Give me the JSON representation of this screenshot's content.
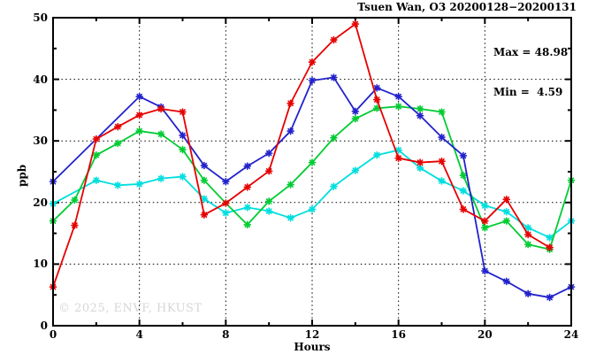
{
  "header": {
    "title": "Tsuen Wan, O3 20200128−20200131"
  },
  "annotation": {
    "max_label": "Max = 48.98",
    "min_label": "Min =  4.59"
  },
  "watermark": "© 2025, ENVF, HKUST",
  "chart_data": {
    "type": "line",
    "title": "Tsuen Wan, O3 20200128−20200131",
    "xlabel": "Hours",
    "ylabel": "ppb",
    "xlim": [
      0,
      24
    ],
    "ylim": [
      0,
      50
    ],
    "xticks": [
      0,
      4,
      8,
      12,
      16,
      20,
      24
    ],
    "yticks": [
      0,
      10,
      20,
      30,
      40,
      50
    ],
    "xticks_minor": [
      2,
      6,
      10,
      14,
      18,
      22
    ],
    "yticks_minor": [
      5,
      15,
      25,
      35,
      45
    ],
    "grid": "dotted",
    "grid_x": [
      4,
      8,
      12,
      16,
      20
    ],
    "grid_y": [
      10,
      20,
      30,
      40
    ],
    "max": 48.98,
    "min": 4.59,
    "x": [
      0,
      1,
      2,
      3,
      4,
      5,
      6,
      7,
      8,
      9,
      10,
      11,
      12,
      13,
      14,
      15,
      16,
      17,
      18,
      19,
      20,
      21,
      22,
      23,
      24
    ],
    "series": [
      {
        "name": "cyan",
        "color": "#00dede",
        "values": [
          19.8,
          null,
          23.6,
          22.8,
          23.0,
          23.9,
          24.2,
          20.6,
          18.3,
          19.2,
          18.6,
          17.5,
          18.9,
          22.6,
          25.2,
          27.7,
          28.5,
          25.6,
          23.5,
          21.9,
          19.5,
          18.5,
          15.9,
          14.3,
          17.0
        ]
      },
      {
        "name": "green",
        "color": "#00cc33",
        "values": [
          17.0,
          20.4,
          27.7,
          29.6,
          31.6,
          31.1,
          28.6,
          23.6,
          19.9,
          16.4,
          20.2,
          22.9,
          26.5,
          30.5,
          33.6,
          35.3,
          35.6,
          35.2,
          34.7,
          24.4,
          15.9,
          17.0,
          13.2,
          12.4,
          23.6
        ]
      },
      {
        "name": "blue",
        "color": "#2222cc",
        "values": [
          23.4,
          null,
          null,
          null,
          37.2,
          35.5,
          30.9,
          26.0,
          23.4,
          25.9,
          28.0,
          31.6,
          39.8,
          40.3,
          34.8,
          38.6,
          37.2,
          34.1,
          30.6,
          27.6,
          8.9,
          7.2,
          5.2,
          4.59,
          6.3
        ]
      },
      {
        "name": "red",
        "color": "#e60000",
        "values": [
          6.3,
          16.3,
          30.3,
          32.3,
          34.2,
          35.2,
          34.7,
          18.0,
          19.9,
          22.5,
          25.1,
          36.1,
          42.8,
          46.4,
          48.98,
          36.7,
          27.2,
          26.5,
          26.7,
          18.9,
          17.0,
          20.5,
          14.8,
          12.7,
          null
        ]
      }
    ]
  }
}
